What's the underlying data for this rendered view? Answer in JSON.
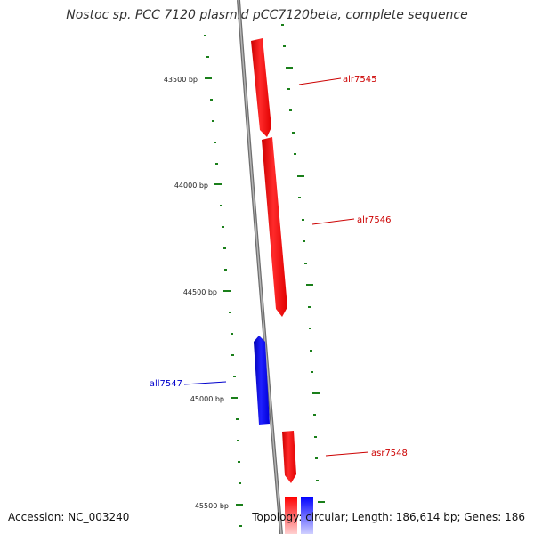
{
  "title": "Nostoc sp. PCC 7120 plasmid pCC7120beta, complete sequence",
  "footer": {
    "accession_label": "Accession:",
    "accession": "NC_003240",
    "topology_label": "Topology:",
    "topology": "circular",
    "length_label": "Length:",
    "length": "186,614 bp",
    "genes_label": "Genes:",
    "genes": "186"
  },
  "ruler": {
    "labels": [
      "43500 bp",
      "44000 bp",
      "44500 bp",
      "45000 bp",
      "45500 bp"
    ]
  },
  "genes": [
    {
      "name": "alr7545",
      "strand": "forward",
      "color": "#ff0000"
    },
    {
      "name": "alr7546",
      "strand": "forward",
      "color": "#ff0000"
    },
    {
      "name": "all7547",
      "strand": "reverse",
      "color": "#0000ff"
    },
    {
      "name": "asr7548",
      "strand": "forward",
      "color": "#ff0000"
    }
  ],
  "colors": {
    "forward": "#ff0000",
    "reverse": "#0000ff",
    "backbone": "#888888",
    "tick": "#1a7f1a"
  }
}
